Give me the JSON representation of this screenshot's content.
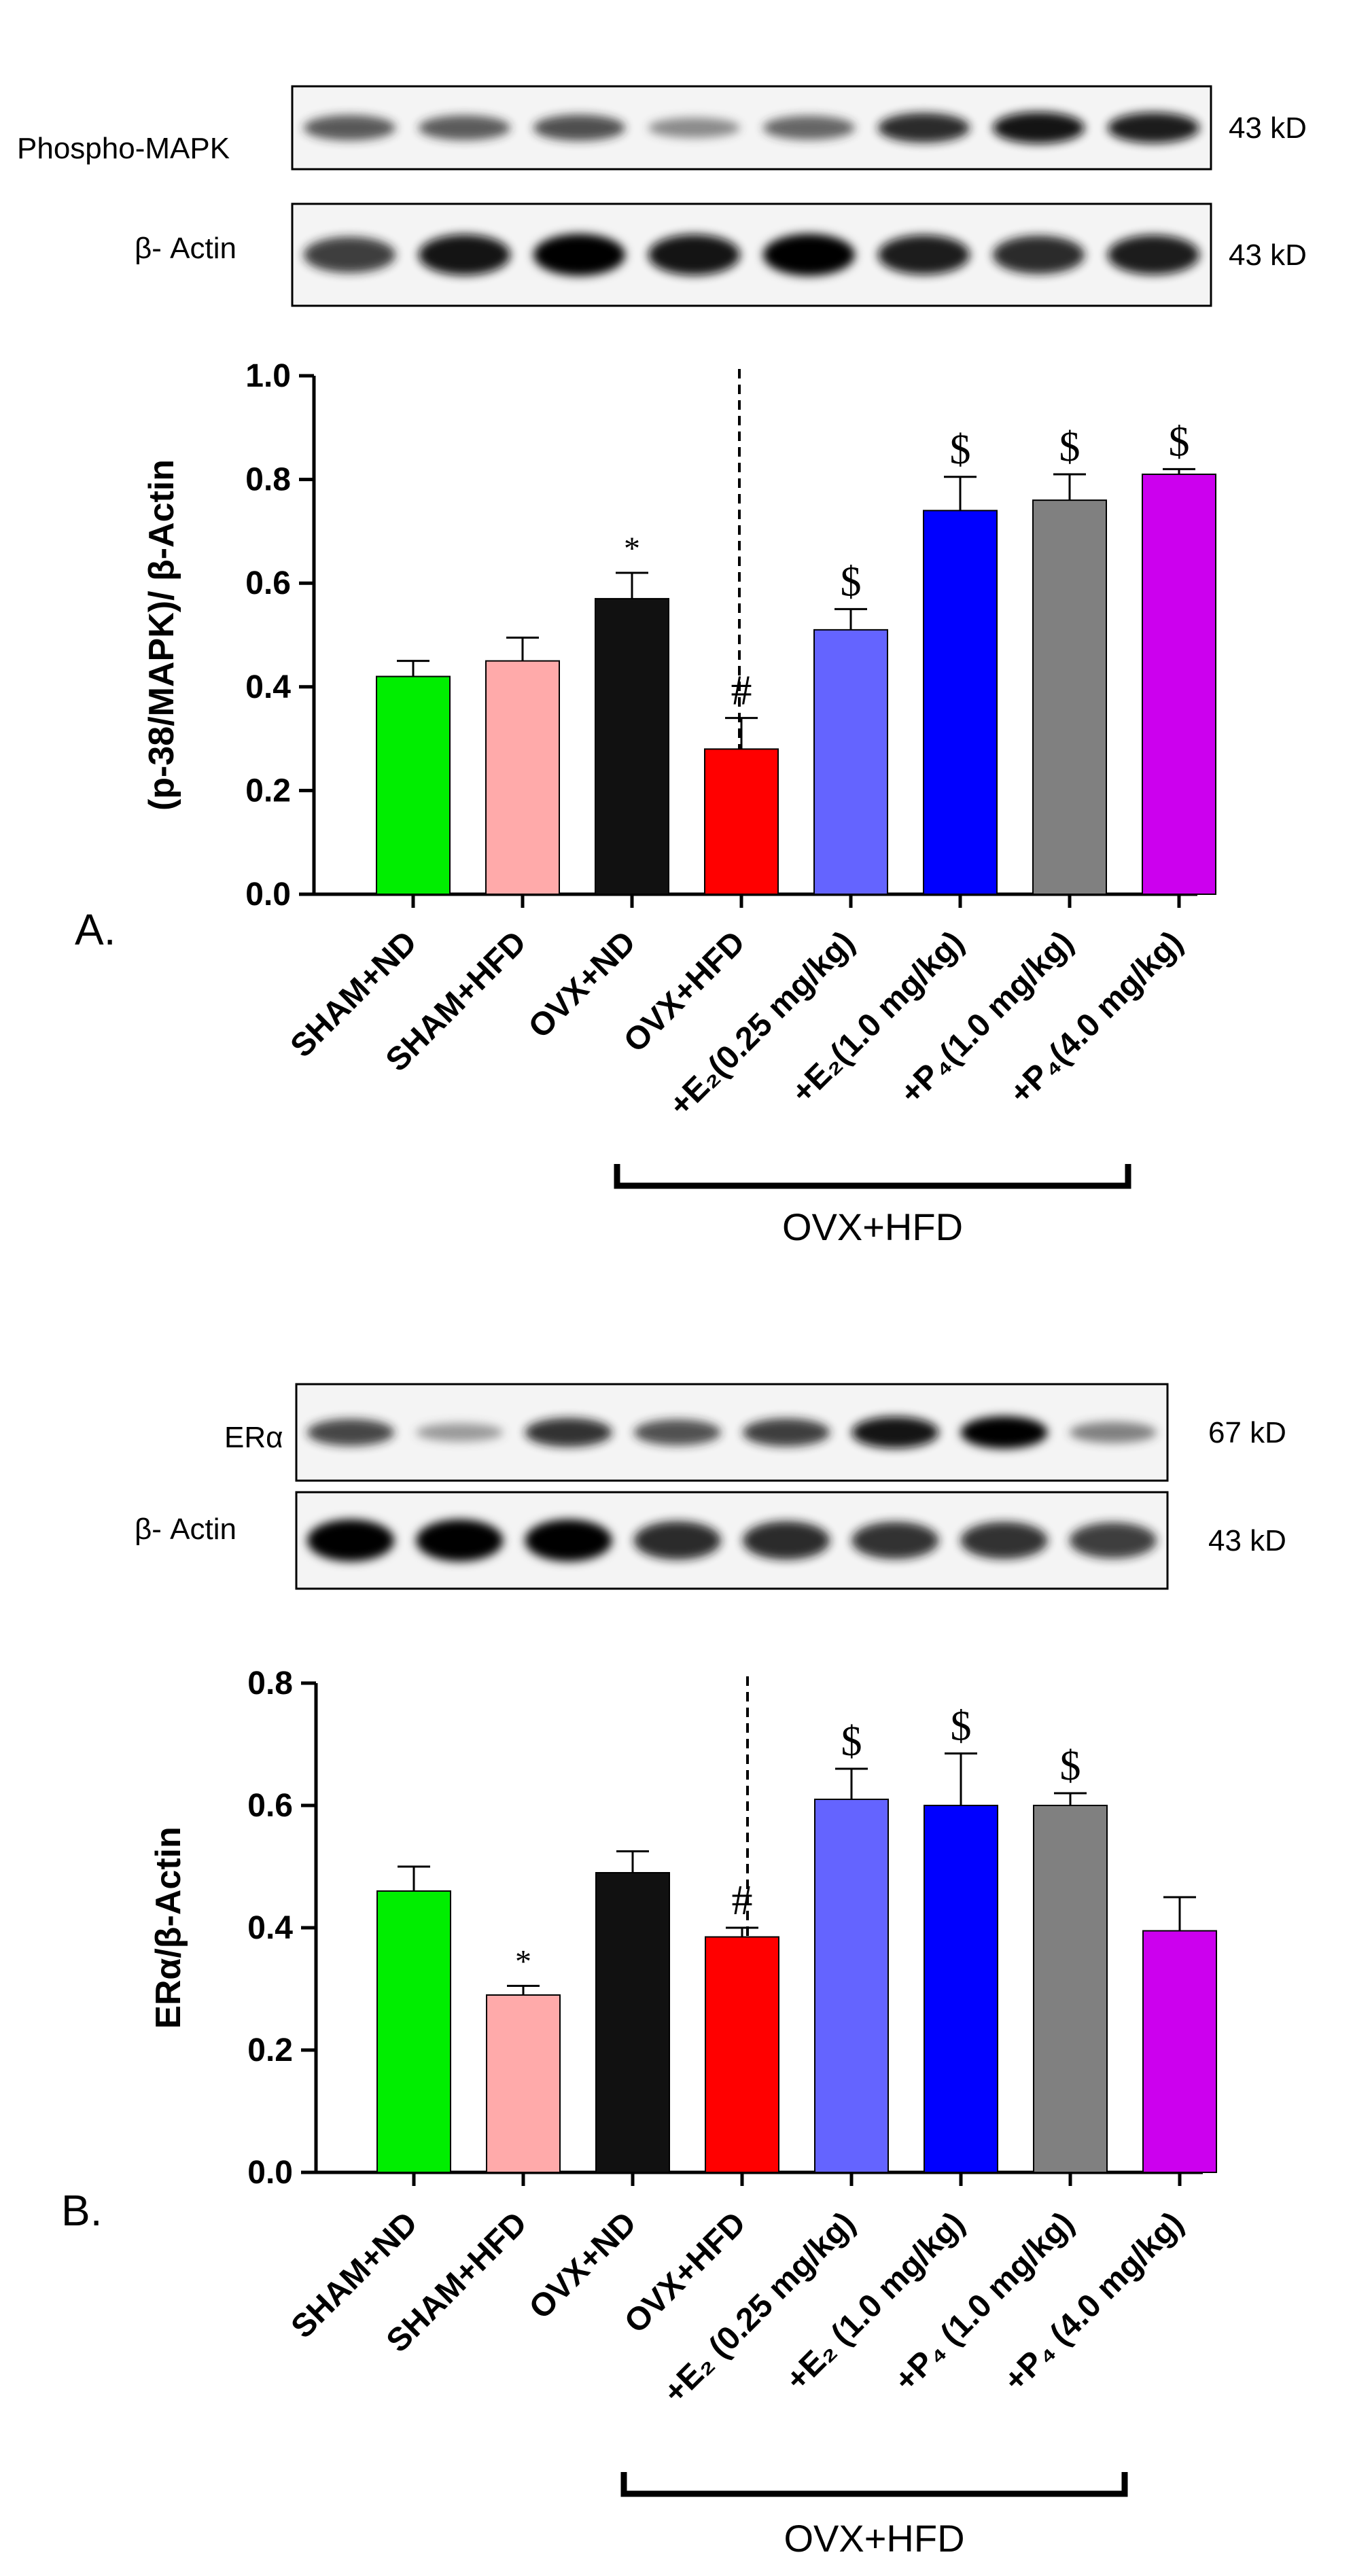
{
  "chart_data": [
    {
      "type": "bar",
      "panel_label": "A.",
      "blot_labels": [
        "Phospho-MAPK",
        "β- Actin"
      ],
      "blot_sizes": [
        "43 kD",
        "43 kD"
      ],
      "blot_intensity": [
        [
          0.62,
          0.6,
          0.66,
          0.35,
          0.55,
          0.85,
          0.95,
          0.9
        ],
        [
          0.75,
          0.95,
          1.0,
          0.95,
          1.0,
          0.9,
          0.85,
          0.9
        ]
      ],
      "ylabel": "(p-38/MAPK)/ β-Actin",
      "ylim": [
        0,
        1.0
      ],
      "yticks": [
        "0.0",
        "0.2",
        "0.4",
        "0.6",
        "0.8",
        "1.0"
      ],
      "categories": [
        "SHAM+ND",
        "SHAM+HFD",
        "OVX+ND",
        "OVX+HFD",
        "+E₂(0.25 mg/kg)",
        "+E₂(1.0 mg/kg)",
        "+P₄(1.0 mg/kg)",
        "+P₄(4.0 mg/kg)"
      ],
      "values": [
        0.42,
        0.45,
        0.57,
        0.28,
        0.51,
        0.74,
        0.76,
        0.81
      ],
      "errors": [
        0.03,
        0.045,
        0.05,
        0.06,
        0.04,
        0.065,
        0.05,
        0.01
      ],
      "colors": [
        "#00ee00",
        "#ffaaaa",
        "#111111",
        "#ff0000",
        "#6464ff",
        "#0000ff",
        "#808080",
        "#cc00ee"
      ],
      "annotations": [
        "",
        "",
        "*",
        "#",
        "$",
        "$",
        "$",
        "$"
      ],
      "group_label": "OVX+HFD"
    },
    {
      "type": "bar",
      "panel_label": "B.",
      "blot_labels": [
        "ERα",
        "β- Actin"
      ],
      "blot_sizes": [
        "67 kD",
        "43 kD"
      ],
      "blot_intensity": [
        [
          0.7,
          0.25,
          0.8,
          0.65,
          0.75,
          0.95,
          1.0,
          0.4
        ],
        [
          1.0,
          1.0,
          1.0,
          0.85,
          0.85,
          0.8,
          0.8,
          0.75
        ]
      ],
      "ylabel": "ERα/β-Actin",
      "ylim": [
        0,
        0.8
      ],
      "yticks": [
        "0.0",
        "0.2",
        "0.4",
        "0.6",
        "0.8"
      ],
      "categories": [
        "SHAM+ND",
        "SHAM+HFD",
        "OVX+ND",
        "OVX+HFD",
        "+E₂ (0.25 mg/kg)",
        "+E₂ (1.0 mg/kg)",
        "+P₄ (1.0 mg/kg)",
        "+P₄ (4.0 mg/kg)"
      ],
      "values": [
        0.46,
        0.29,
        0.49,
        0.385,
        0.61,
        0.6,
        0.6,
        0.395
      ],
      "errors": [
        0.04,
        0.015,
        0.035,
        0.015,
        0.05,
        0.085,
        0.02,
        0.055
      ],
      "colors": [
        "#00ee00",
        "#ffaaaa",
        "#111111",
        "#ff0000",
        "#6464ff",
        "#0000ff",
        "#808080",
        "#cc00ee"
      ],
      "annotations": [
        "",
        "*",
        "",
        "#",
        "$",
        "$",
        "$",
        ""
      ],
      "group_label": "OVX+HFD"
    }
  ]
}
